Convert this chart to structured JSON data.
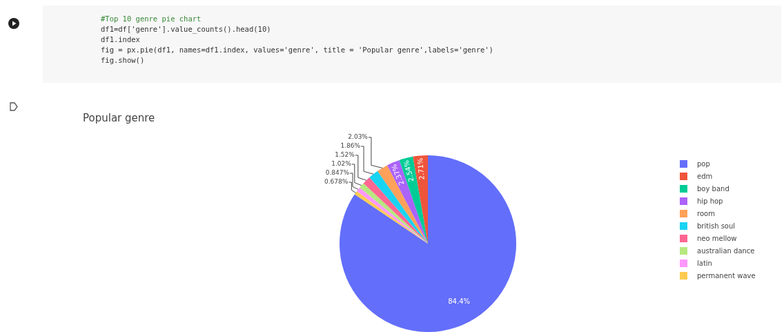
{
  "chart_data": {
    "type": "pie",
    "title": "Popular genre",
    "categories": [
      "pop",
      "edm",
      "boy band",
      "hip hop",
      "room",
      "british soul",
      "neo mellow",
      "australian dance",
      "latin",
      "permanent wave"
    ],
    "values": [
      84.425,
      2.71,
      2.54,
      2.37,
      2.03,
      1.86,
      1.52,
      1.02,
      0.847,
      0.678
    ],
    "colors": [
      "#636efa",
      "#ef553b",
      "#00cc96",
      "#ab63fa",
      "#ffa15a",
      "#19d3f3",
      "#ff6692",
      "#b6e880",
      "#ff97ff",
      "#fecb52"
    ],
    "value_labels": [
      "84.4%",
      "2.71%",
      "2.54%",
      "2.37%",
      "2.03%",
      "1.86%",
      "1.52%",
      "1.02%",
      "0.847%",
      "0.678%"
    ],
    "legend": "right",
    "annotations": [
      "#Top 10 genre pie chart",
      "df1=df['genre'].value_counts().head(10)",
      "df1.index",
      "fig = px.pie(df1, names=df1.index, values='genre', title = 'Popular genre',labels='genre')",
      "fig.show()"
    ]
  }
}
